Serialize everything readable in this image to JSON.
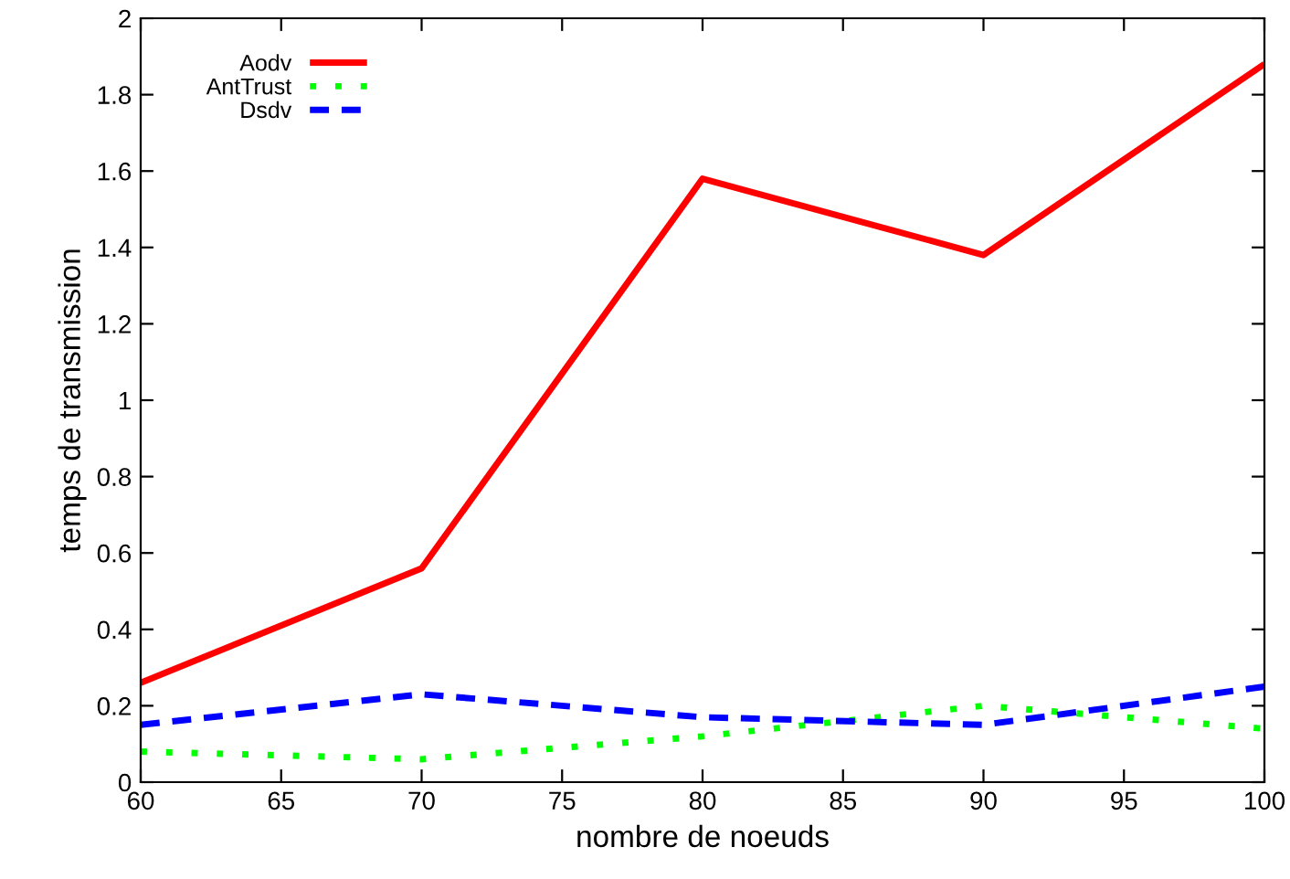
{
  "chart_data": {
    "type": "line",
    "xlabel": "nombre de noeuds",
    "ylabel": "temps de transmission",
    "x": [
      60,
      70,
      80,
      90,
      100
    ],
    "series": [
      {
        "name": "Aodv",
        "color": "#ff0000",
        "line_style": "solid",
        "values": [
          0.26,
          0.56,
          1.58,
          1.38,
          1.88
        ]
      },
      {
        "name": "AntTrust",
        "color": "#00ff00",
        "line_style": "dotted",
        "values": [
          0.08,
          0.06,
          0.12,
          0.2,
          0.14
        ]
      },
      {
        "name": "Dsdv",
        "color": "#0000ff",
        "line_style": "dashed",
        "values": [
          0.15,
          0.23,
          0.17,
          0.15,
          0.25
        ]
      }
    ],
    "xlim": [
      60,
      100
    ],
    "xticks": [
      60,
      65,
      70,
      75,
      80,
      85,
      90,
      95,
      100
    ],
    "ylim": [
      0,
      2
    ],
    "yticks": [
      0,
      0.2,
      0.4,
      0.6,
      0.8,
      1,
      1.2,
      1.4,
      1.6,
      1.8,
      2
    ],
    "grid": false,
    "legend": "top left",
    "marker": "none"
  }
}
